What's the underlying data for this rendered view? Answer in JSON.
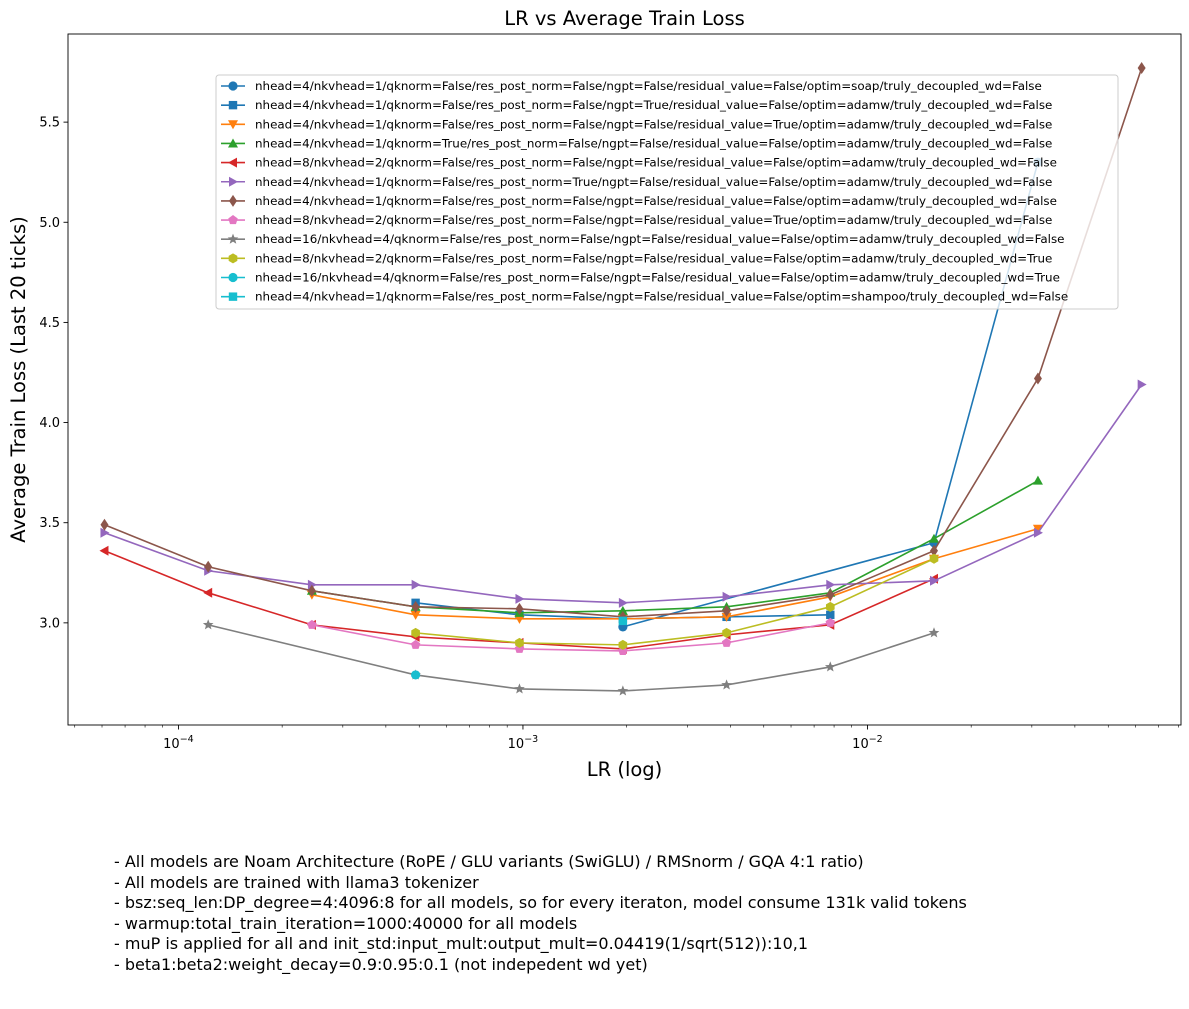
{
  "chart_data": {
    "type": "line",
    "title": "LR vs Average Train Loss",
    "xlabel": "LR (log)",
    "ylabel": "Average Train Loss (Last 20 ticks)",
    "xscale": "log",
    "xlim": [
      4.78e-05,
      0.0813
    ],
    "ylim": [
      2.49,
      5.94
    ],
    "x_ticks": [
      {
        "value": 0.0001,
        "base": "10",
        "exp": "−4"
      },
      {
        "value": 0.001,
        "base": "10",
        "exp": "−3"
      },
      {
        "value": 0.01,
        "base": "10",
        "exp": "−2"
      }
    ],
    "y_ticks": [
      {
        "value": 3.0,
        "label": "3.0"
      },
      {
        "value": 3.5,
        "label": "3.5"
      },
      {
        "value": 4.0,
        "label": "4.0"
      },
      {
        "value": 4.5,
        "label": "4.5"
      },
      {
        "value": 5.0,
        "label": "5.0"
      },
      {
        "value": 5.5,
        "label": "5.5"
      }
    ],
    "grid": false,
    "legend_position": "upper-right",
    "series": [
      {
        "name": "nhead=4/nkvhead=1/qknorm=False/res_post_norm=False/ngpt=False/residual_value=False/optim=soap/truly_decoupled_wd=False",
        "color": "#1f77b4",
        "marker": "circle",
        "x": [
          0.00195,
          0.0156,
          0.03125
        ],
        "y": [
          2.98,
          3.4,
          5.3
        ]
      },
      {
        "name": "nhead=4/nkvhead=1/qknorm=False/res_post_norm=False/ngpt=True/residual_value=False/optim=adamw/truly_decoupled_wd=False",
        "color": "#1f77b4",
        "marker": "square",
        "x": [
          0.000488,
          0.000977,
          0.00195,
          0.0039,
          0.0078
        ],
        "y": [
          3.1,
          3.04,
          3.02,
          3.03,
          3.04
        ]
      },
      {
        "name": "nhead=4/nkvhead=1/qknorm=False/res_post_norm=False/ngpt=False/residual_value=True/optim=adamw/truly_decoupled_wd=False",
        "color": "#ff7f0e",
        "marker": "triangle-down",
        "x": [
          0.000244,
          0.000488,
          0.000977,
          0.00195,
          0.0039,
          0.0078,
          0.0156,
          0.03125
        ],
        "y": [
          3.14,
          3.04,
          3.02,
          3.02,
          3.03,
          3.13,
          3.32,
          3.47
        ]
      },
      {
        "name": "nhead=4/nkvhead=1/qknorm=True/res_post_norm=False/ngpt=False/residual_value=False/optim=adamw/truly_decoupled_wd=False",
        "color": "#2ca02c",
        "marker": "triangle-up",
        "x": [
          0.000244,
          0.000488,
          0.000977,
          0.00195,
          0.0039,
          0.0078,
          0.0156,
          0.03125
        ],
        "y": [
          3.16,
          3.08,
          3.05,
          3.06,
          3.08,
          3.15,
          3.42,
          3.71
        ]
      },
      {
        "name": "nhead=8/nkvhead=2/qknorm=False/res_post_norm=False/ngpt=False/residual_value=False/optim=adamw/truly_decoupled_wd=False",
        "color": "#d62728",
        "marker": "triangle-left",
        "x": [
          6.1e-05,
          0.000122,
          0.000244,
          0.000488,
          0.000977,
          0.00195,
          0.0039,
          0.0078,
          0.0156
        ],
        "y": [
          3.36,
          3.15,
          2.99,
          2.93,
          2.9,
          2.87,
          2.94,
          2.99,
          3.22
        ]
      },
      {
        "name": "nhead=4/nkvhead=1/qknorm=False/res_post_norm=True/ngpt=False/residual_value=False/optim=adamw/truly_decoupled_wd=False",
        "color": "#9467bd",
        "marker": "triangle-right",
        "x": [
          6.1e-05,
          0.000122,
          0.000244,
          0.000488,
          0.000977,
          0.00195,
          0.0039,
          0.0078,
          0.0156,
          0.03125,
          0.0625
        ],
        "y": [
          3.45,
          3.26,
          3.19,
          3.19,
          3.12,
          3.1,
          3.13,
          3.19,
          3.21,
          3.45,
          4.19
        ]
      },
      {
        "name": "nhead=4/nkvhead=1/qknorm=False/res_post_norm=False/ngpt=False/residual_value=False/optim=adamw/truly_decoupled_wd=False",
        "color": "#8c564b",
        "marker": "diamond",
        "x": [
          6.1e-05,
          0.000122,
          0.000244,
          0.000488,
          0.000977,
          0.00195,
          0.0039,
          0.0078,
          0.0156,
          0.03125,
          0.0625
        ],
        "y": [
          3.49,
          3.28,
          3.16,
          3.08,
          3.07,
          3.03,
          3.06,
          3.14,
          3.36,
          4.22,
          5.77
        ]
      },
      {
        "name": "nhead=8/nkvhead=2/qknorm=False/res_post_norm=False/ngpt=False/residual_value=True/optim=adamw/truly_decoupled_wd=False",
        "color": "#e377c2",
        "marker": "pentagon",
        "x": [
          0.000244,
          0.000488,
          0.000977,
          0.00195,
          0.0039,
          0.0078
        ],
        "y": [
          2.99,
          2.89,
          2.87,
          2.86,
          2.9,
          3.0
        ]
      },
      {
        "name": "nhead=16/nkvhead=4/qknorm=False/res_post_norm=False/ngpt=False/residual_value=False/optim=adamw/truly_decoupled_wd=False",
        "color": "#7f7f7f",
        "marker": "star",
        "x": [
          0.000122,
          0.000488,
          0.000977,
          0.00195,
          0.0039,
          0.0078,
          0.0156
        ],
        "y": [
          2.99,
          2.74,
          2.67,
          2.66,
          2.69,
          2.78,
          2.95
        ]
      },
      {
        "name": "nhead=8/nkvhead=2/qknorm=False/res_post_norm=False/ngpt=False/residual_value=False/optim=adamw/truly_decoupled_wd=True",
        "color": "#bcbd22",
        "marker": "hexagon",
        "x": [
          0.000488,
          0.000977,
          0.00195,
          0.0039,
          0.0078,
          0.0156
        ],
        "y": [
          2.95,
          2.9,
          2.89,
          2.95,
          3.08,
          3.32
        ]
      },
      {
        "name": "nhead=16/nkvhead=4/qknorm=False/res_post_norm=False/ngpt=False/residual_value=False/optim=adamw/truly_decoupled_wd=True",
        "color": "#17becf",
        "marker": "circle",
        "x": [
          0.000488
        ],
        "y": [
          2.74
        ]
      },
      {
        "name": "nhead=4/nkvhead=1/qknorm=False/res_post_norm=False/ngpt=False/residual_value=False/optim=shampoo/truly_decoupled_wd=False",
        "color": "#17becf",
        "marker": "square",
        "x": [
          0.00195
        ],
        "y": [
          3.01
        ]
      }
    ]
  },
  "notes": [
    "- All models are Noam Architecture (RoPE / GLU variants (SwiGLU) / RMSnorm / GQA 4:1 ratio)",
    "- All models are trained with llama3 tokenizer",
    "- bsz:seq_len:DP_degree=4:4096:8 for all models, so for every iteraton, model consume 131k valid tokens",
    "- warmup:total_train_iteration=1000:40000 for all models",
    "- muP is applied for all and init_std:input_mult:output_mult=0.04419(1/sqrt(512)):10,1",
    "- beta1:beta2:weight_decay=0.9:0.95:0.1 (not indepedent wd yet)"
  ]
}
